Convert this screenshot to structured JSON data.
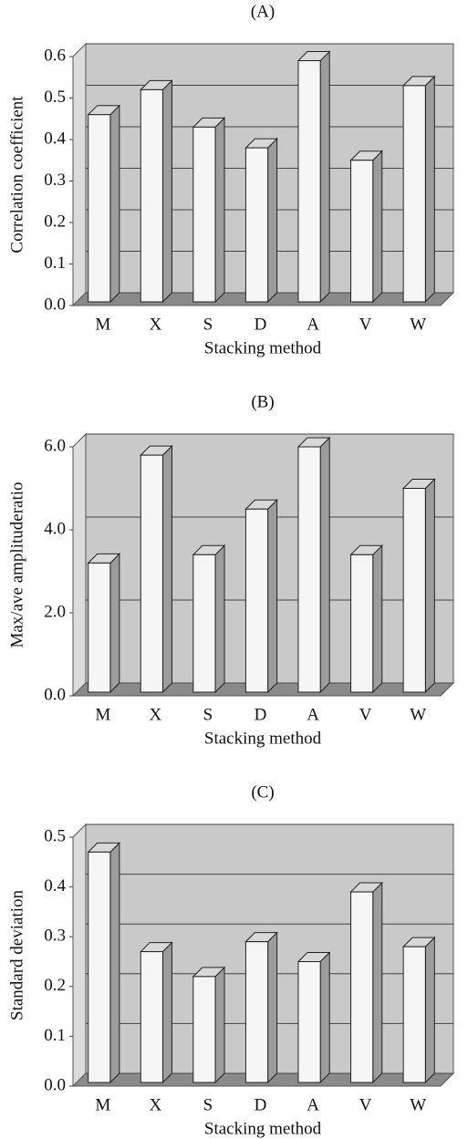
{
  "chart_data": [
    {
      "type": "bar",
      "title": "(A)",
      "x_label": "Stacking method",
      "y_label": "Correlation coefficient",
      "categories": [
        "M",
        "X",
        "S",
        "D",
        "A",
        "V",
        "W"
      ],
      "values": [
        0.46,
        0.52,
        0.43,
        0.38,
        0.59,
        0.35,
        0.53
      ],
      "ylim": [
        0,
        0.6
      ],
      "yticks": [
        {
          "value": 0,
          "label": "0.0"
        },
        0.1,
        0.2,
        0.3,
        0.4,
        0.5,
        0.6
      ],
      "grid": true,
      "color": "#f6f6f6"
    },
    {
      "type": "bar",
      "title": "(B)",
      "x_label": "Stacking method",
      "y_label": "Max/ave amplitudera­tio",
      "categories": [
        "M",
        "X",
        "S",
        "D",
        "A",
        "V",
        "W"
      ],
      "values": [
        3.2,
        5.8,
        3.4,
        4.5,
        6.0,
        3.4,
        5.0
      ],
      "ylim": [
        0,
        6
      ],
      "yticks": [
        {
          "value": 0,
          "label": "0.0"
        },
        {
          "value": 2,
          "label": "2.0"
        },
        {
          "value": 4,
          "label": "4.0"
        },
        {
          "value": 6,
          "label": "6.0"
        }
      ],
      "grid": true,
      "color": "#f6f6f6"
    },
    {
      "type": "bar",
      "title": "(C)",
      "x_label": "Stacking method",
      "y_label": "Standard deviation",
      "categories": [
        "M",
        "X",
        "S",
        "D",
        "A",
        "V",
        "W"
      ],
      "values": [
        0.47,
        0.27,
        0.22,
        0.29,
        0.25,
        0.39,
        0.28
      ],
      "ylim": [
        0,
        0.5
      ],
      "yticks": [
        {
          "value": 0,
          "label": "0.0"
        },
        0.1,
        0.2,
        0.3,
        0.4,
        0.5
      ],
      "grid": true,
      "color": "#f6f6f6"
    }
  ]
}
